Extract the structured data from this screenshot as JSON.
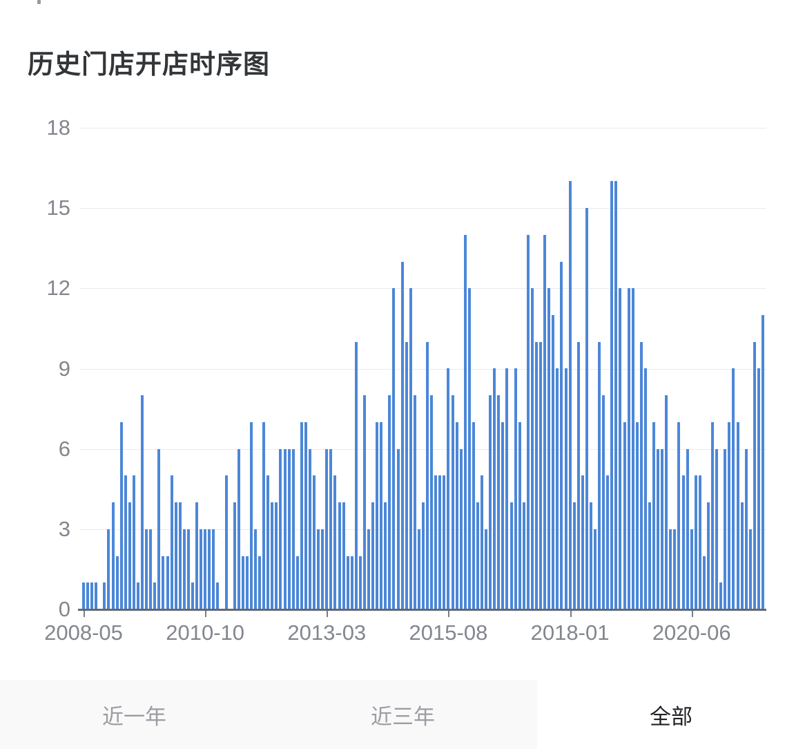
{
  "header": {
    "title": "历史门店开店时序图"
  },
  "top_fragment": {
    "visible": true
  },
  "chart_data": {
    "type": "bar",
    "title": "历史门店开店时序图",
    "xlabel": "",
    "ylabel": "",
    "start_month": "2008-05",
    "x_tick_labels": [
      "2008-05",
      "2010-10",
      "2013-03",
      "2015-08",
      "2018-01",
      "2020-06"
    ],
    "x_tick_indices": [
      0,
      29,
      58,
      87,
      116,
      145
    ],
    "y_ticks": [
      0,
      3,
      6,
      9,
      12,
      15,
      18
    ],
    "ylim": [
      0,
      18
    ],
    "grid": true,
    "legend": false,
    "values": [
      1,
      1,
      1,
      1,
      0,
      1,
      3,
      4,
      2,
      7,
      5,
      4,
      5,
      1,
      8,
      3,
      3,
      1,
      6,
      2,
      2,
      5,
      4,
      4,
      3,
      3,
      1,
      4,
      3,
      3,
      3,
      3,
      1,
      0,
      5,
      0,
      4,
      6,
      2,
      2,
      7,
      3,
      2,
      7,
      5,
      4,
      4,
      6,
      6,
      6,
      6,
      2,
      7,
      7,
      6,
      5,
      3,
      3,
      6,
      6,
      5,
      4,
      4,
      2,
      2,
      10,
      2,
      8,
      3,
      4,
      7,
      7,
      4,
      8,
      12,
      6,
      13,
      10,
      12,
      8,
      3,
      4,
      10,
      8,
      5,
      5,
      5,
      9,
      8,
      7,
      6,
      14,
      12,
      7,
      4,
      5,
      3,
      8,
      9,
      8,
      7,
      9,
      4,
      9,
      7,
      4,
      14,
      12,
      10,
      10,
      14,
      12,
      11,
      9,
      13,
      9,
      16,
      4,
      10,
      5,
      15,
      4,
      3,
      10,
      8,
      5,
      16,
      16,
      12,
      7,
      12,
      12,
      7,
      10,
      9,
      4,
      7,
      6,
      6,
      8,
      3,
      3,
      7,
      5,
      6,
      3,
      5,
      5,
      2,
      4,
      7,
      6,
      1,
      6,
      7,
      9,
      7,
      4,
      6,
      3,
      10,
      9,
      11
    ]
  },
  "tabs": [
    {
      "label": "近一年",
      "active": false
    },
    {
      "label": "近三年",
      "active": false
    },
    {
      "label": "全部",
      "active": true
    }
  ],
  "colors": {
    "bar": "#4c87d8",
    "grid": "#e8eaef",
    "axis_line": "#65686d",
    "tick": "#787c82",
    "axis_label": "#82868e",
    "title_text": "#333639",
    "tab_inactive_bg": "#f9f9fa",
    "tab_active_bg": "#ffffff",
    "tab_inactive_text": "#9c9da3",
    "tab_active_text": "#1f2126"
  }
}
